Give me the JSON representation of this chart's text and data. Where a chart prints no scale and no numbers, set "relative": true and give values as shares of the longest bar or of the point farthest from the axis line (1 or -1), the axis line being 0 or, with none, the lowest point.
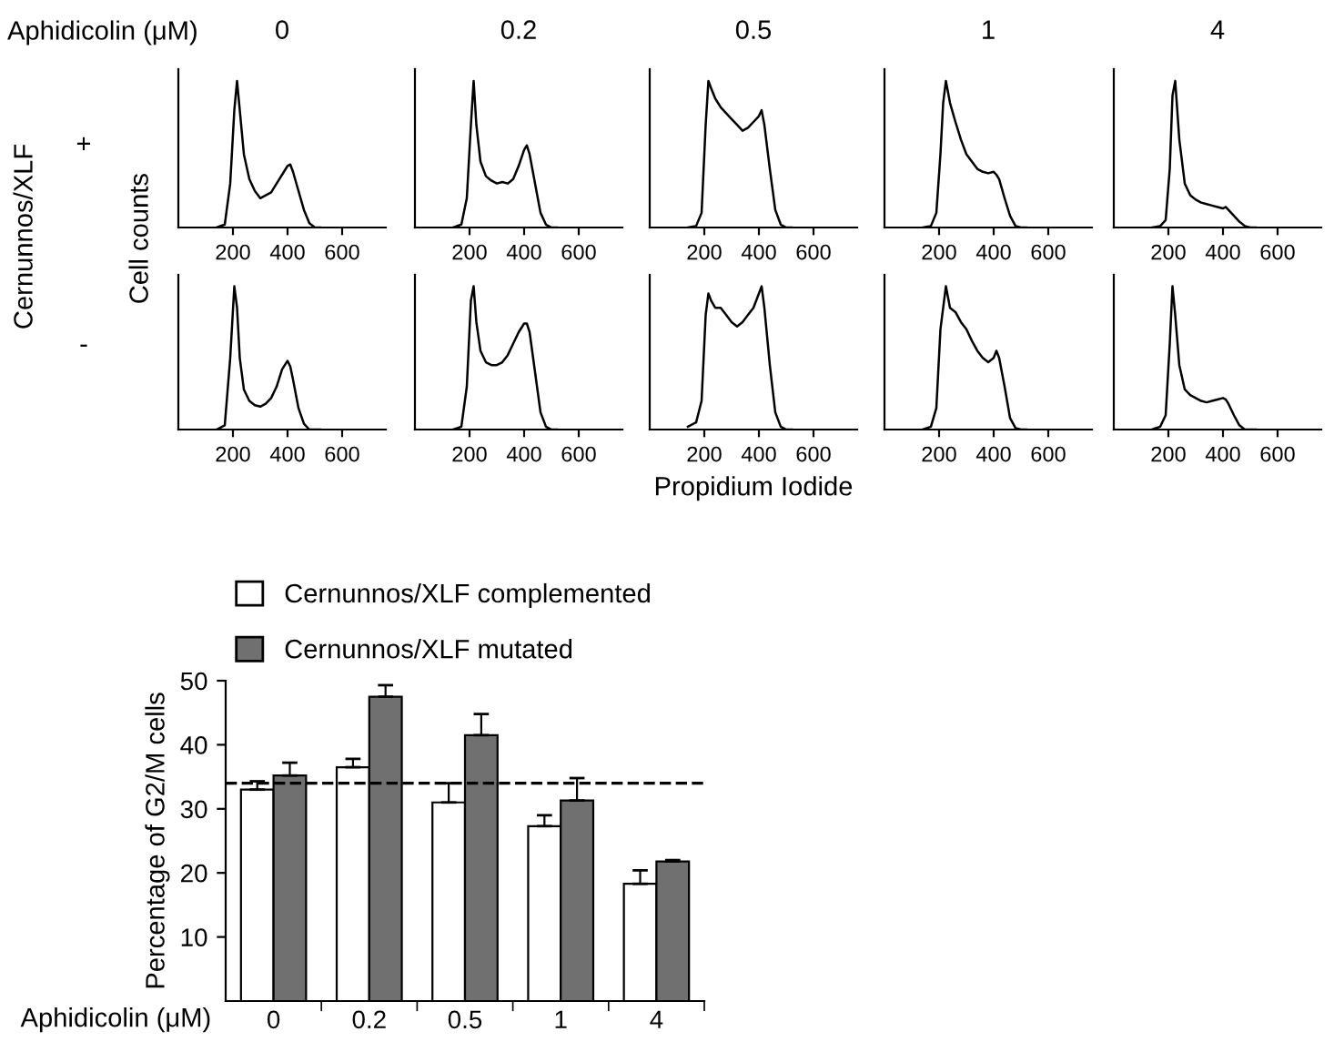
{
  "chart_data": [
    {
      "type": "line",
      "title": "0",
      "ylabel": "Cell counts",
      "annotations": [
        "Aphidicolin (μM)",
        "Cernunnos/XLF",
        "+"
      ],
      "relative": true,
      "tick_labels": "x",
      "xlim": [
        0,
        760
      ],
      "xticks": [
        200,
        400,
        600
      ],
      "series": [
        {
          "color": "#000000",
          "x": [
            140,
            170,
            190,
            205,
            215,
            225,
            240,
            260,
            280,
            300,
            320,
            340,
            360,
            380,
            400,
            410,
            420,
            440,
            460,
            480,
            500,
            520
          ],
          "values": [
            0,
            0.02,
            0.3,
            0.8,
            1.0,
            0.8,
            0.5,
            0.33,
            0.25,
            0.2,
            0.22,
            0.24,
            0.3,
            0.36,
            0.42,
            0.43,
            0.38,
            0.25,
            0.12,
            0.03,
            0,
            0
          ]
        }
      ]
    },
    {
      "type": "line",
      "title": "0.2",
      "relative": true,
      "tick_labels": "x",
      "xlim": [
        0,
        760
      ],
      "xticks": [
        200,
        400,
        600
      ],
      "series": [
        {
          "color": "#000000",
          "x": [
            140,
            170,
            190,
            205,
            215,
            225,
            240,
            260,
            280,
            300,
            320,
            340,
            360,
            380,
            400,
            410,
            420,
            440,
            460,
            480,
            500,
            520
          ],
          "values": [
            0,
            0.02,
            0.2,
            0.7,
            1.0,
            0.7,
            0.45,
            0.35,
            0.32,
            0.3,
            0.31,
            0.3,
            0.33,
            0.42,
            0.53,
            0.56,
            0.5,
            0.3,
            0.1,
            0.02,
            0,
            0
          ]
        }
      ]
    },
    {
      "type": "line",
      "title": "0.5",
      "relative": true,
      "tick_labels": "x",
      "xlim": [
        0,
        760
      ],
      "xticks": [
        200,
        400,
        600
      ],
      "series": [
        {
          "color": "#000000",
          "x": [
            140,
            170,
            190,
            205,
            215,
            225,
            240,
            260,
            280,
            300,
            320,
            340,
            360,
            380,
            400,
            410,
            420,
            440,
            460,
            480,
            500,
            520
          ],
          "values": [
            0,
            0.01,
            0.1,
            0.7,
            1.0,
            0.95,
            0.88,
            0.82,
            0.78,
            0.74,
            0.7,
            0.66,
            0.68,
            0.72,
            0.76,
            0.8,
            0.7,
            0.4,
            0.12,
            0.02,
            0,
            0
          ]
        }
      ]
    },
    {
      "type": "line",
      "title": "1",
      "relative": true,
      "tick_labels": "x",
      "xlim": [
        0,
        760
      ],
      "xticks": [
        200,
        400,
        600
      ],
      "series": [
        {
          "color": "#000000",
          "x": [
            140,
            170,
            190,
            205,
            215,
            225,
            240,
            260,
            280,
            300,
            320,
            340,
            360,
            380,
            400,
            410,
            420,
            440,
            460,
            480,
            500,
            520
          ],
          "values": [
            0,
            0.01,
            0.1,
            0.5,
            0.85,
            1.0,
            0.85,
            0.72,
            0.6,
            0.5,
            0.45,
            0.4,
            0.38,
            0.37,
            0.38,
            0.36,
            0.33,
            0.2,
            0.08,
            0.01,
            0,
            0
          ]
        }
      ]
    },
    {
      "type": "line",
      "title": "4",
      "relative": true,
      "tick_labels": "x",
      "xlim": [
        0,
        760
      ],
      "xticks": [
        200,
        400,
        600
      ],
      "series": [
        {
          "color": "#000000",
          "x": [
            140,
            170,
            190,
            205,
            215,
            225,
            240,
            260,
            280,
            300,
            320,
            340,
            360,
            380,
            400,
            410,
            420,
            440,
            460,
            480,
            500,
            520
          ],
          "values": [
            0,
            0.01,
            0.05,
            0.4,
            0.9,
            1.0,
            0.6,
            0.3,
            0.22,
            0.19,
            0.17,
            0.16,
            0.15,
            0.14,
            0.13,
            0.14,
            0.12,
            0.08,
            0.04,
            0.01,
            0,
            0
          ]
        }
      ]
    },
    {
      "type": "line",
      "annotations": [
        "-"
      ],
      "relative": true,
      "tick_labels": "x",
      "xlim": [
        0,
        760
      ],
      "xticks": [
        200,
        400,
        600
      ],
      "series": [
        {
          "color": "#000000",
          "x": [
            140,
            170,
            190,
            205,
            215,
            225,
            240,
            260,
            280,
            300,
            320,
            340,
            360,
            380,
            400,
            410,
            420,
            440,
            460,
            480,
            500,
            520
          ],
          "values": [
            0,
            0.03,
            0.5,
            1.0,
            0.85,
            0.5,
            0.28,
            0.2,
            0.17,
            0.16,
            0.18,
            0.22,
            0.3,
            0.42,
            0.48,
            0.44,
            0.35,
            0.15,
            0.04,
            0,
            0,
            0
          ]
        }
      ]
    },
    {
      "type": "line",
      "relative": true,
      "tick_labels": "x",
      "xlim": [
        0,
        760
      ],
      "xticks": [
        200,
        400,
        600
      ],
      "series": [
        {
          "color": "#000000",
          "x": [
            140,
            170,
            190,
            205,
            215,
            225,
            240,
            260,
            280,
            300,
            320,
            340,
            360,
            380,
            400,
            410,
            420,
            440,
            460,
            480,
            500,
            520
          ],
          "values": [
            0,
            0.02,
            0.3,
            0.9,
            1.0,
            0.75,
            0.55,
            0.47,
            0.45,
            0.45,
            0.47,
            0.52,
            0.6,
            0.68,
            0.74,
            0.74,
            0.68,
            0.4,
            0.12,
            0.02,
            0,
            0
          ]
        }
      ]
    },
    {
      "type": "line",
      "xlabel": "Propidium Iodide",
      "relative": true,
      "tick_labels": "x",
      "xlim": [
        0,
        760
      ],
      "xticks": [
        200,
        400,
        600
      ],
      "series": [
        {
          "color": "#000000",
          "x": [
            140,
            170,
            190,
            205,
            215,
            225,
            240,
            260,
            280,
            300,
            320,
            340,
            360,
            380,
            400,
            410,
            420,
            440,
            460,
            480,
            500,
            520
          ],
          "values": [
            0.02,
            0.05,
            0.2,
            0.8,
            0.95,
            0.9,
            0.85,
            0.85,
            0.8,
            0.75,
            0.72,
            0.75,
            0.8,
            0.85,
            0.95,
            1.0,
            0.85,
            0.45,
            0.12,
            0.02,
            0,
            0
          ]
        }
      ]
    },
    {
      "type": "line",
      "relative": true,
      "tick_labels": "x",
      "xlim": [
        0,
        760
      ],
      "xticks": [
        200,
        400,
        600
      ],
      "series": [
        {
          "color": "#000000",
          "x": [
            140,
            170,
            190,
            205,
            215,
            225,
            240,
            260,
            280,
            300,
            320,
            340,
            360,
            380,
            400,
            410,
            420,
            440,
            460,
            480,
            500,
            520
          ],
          "values": [
            0,
            0.02,
            0.15,
            0.7,
            0.85,
            1.0,
            0.85,
            0.82,
            0.75,
            0.7,
            0.62,
            0.55,
            0.5,
            0.47,
            0.5,
            0.55,
            0.5,
            0.3,
            0.08,
            0.01,
            0,
            0
          ]
        }
      ]
    },
    {
      "type": "line",
      "relative": true,
      "tick_labels": "x",
      "xlim": [
        0,
        760
      ],
      "xticks": [
        200,
        400,
        600
      ],
      "series": [
        {
          "color": "#000000",
          "x": [
            140,
            170,
            190,
            205,
            215,
            225,
            240,
            260,
            280,
            300,
            320,
            340,
            360,
            380,
            400,
            410,
            420,
            440,
            460,
            480,
            500,
            520
          ],
          "values": [
            0,
            0.02,
            0.1,
            0.6,
            1.0,
            0.8,
            0.45,
            0.28,
            0.24,
            0.22,
            0.2,
            0.19,
            0.2,
            0.21,
            0.22,
            0.21,
            0.18,
            0.1,
            0.03,
            0,
            0,
            0
          ]
        }
      ]
    },
    {
      "type": "bar",
      "xlabel": "Aphidicolin (μM)",
      "ylabel": "Percentage of G2/M cells",
      "categories": [
        "0",
        "0.2",
        "0.5",
        "1",
        "4"
      ],
      "ylim": [
        0,
        50
      ],
      "yticks": [
        10,
        20,
        30,
        40,
        50
      ],
      "legend": "top",
      "ref_lines": [
        {
          "axis": "y",
          "value": 34,
          "line_style": "dashed",
          "color": "#000000"
        }
      ],
      "series": [
        {
          "name": "Cernunnos/XLF complemented",
          "color": "#ffffff",
          "values": [
            33,
            36.5,
            31,
            27.3,
            18.3
          ],
          "errors": [
            [
              33,
              34.3
            ],
            [
              36.5,
              37.8
            ],
            [
              31,
              34
            ],
            [
              27.3,
              29
            ],
            [
              18.3,
              20.4
            ]
          ]
        },
        {
          "name": "Cernunnos/XLF mutated",
          "color": "#707070",
          "values": [
            35.2,
            47.5,
            41.5,
            31.3,
            21.8
          ],
          "errors": [
            [
              35.2,
              37.2
            ],
            [
              47.5,
              49.3
            ],
            [
              41.5,
              44.8
            ],
            [
              31.3,
              34.8
            ],
            [
              21.8,
              22
            ]
          ]
        }
      ]
    }
  ]
}
